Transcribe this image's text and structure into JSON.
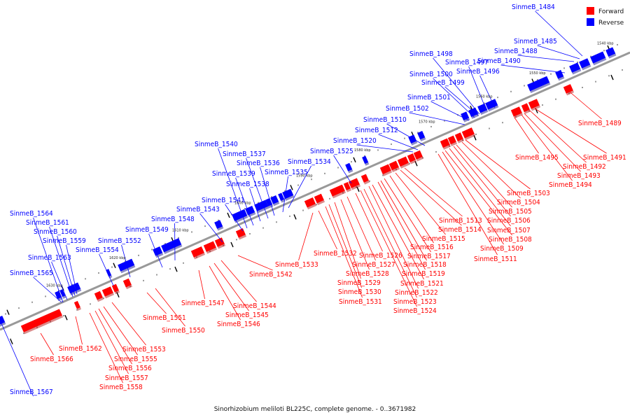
{
  "title": "Sinorhizobium meliloti BL225C, complete genome. - 0..3671982",
  "colors": {
    "forward": "#ff0000",
    "reverse": "#0000ff",
    "axis": "#999999"
  },
  "legend": {
    "forward": "Forward",
    "reverse": "Reverse"
  },
  "kbp_labels": [
    "1540 kbp",
    "1550 kbp",
    "1560 kbp",
    "1570 kbp",
    "1580 kbp",
    "1590 kbp",
    "1600 kbp",
    "1610 kbp",
    "1620 kbp",
    "1630 kbp"
  ],
  "forward_genes": [
    "SinmeB_1489",
    "SinmeB_1491",
    "SinmeB_1492",
    "SinmeB_1493",
    "SinmeB_1494",
    "SinmeB_1495",
    "SinmeB_1503",
    "SinmeB_1504",
    "SinmeB_1505",
    "SinmeB_1506",
    "SinmeB_1507",
    "SinmeB_1508",
    "SinmeB_1509",
    "SinmeB_1511",
    "SinmeB_1513",
    "SinmeB_1514",
    "SinmeB_1515",
    "SinmeB_1516",
    "SinmeB_1517",
    "SinmeB_1518",
    "SinmeB_1519",
    "SinmeB_1521",
    "SinmeB_1522",
    "SinmeB_1523",
    "SinmeB_1524",
    "SinmeB_1526",
    "SinmeB_1527",
    "SinmeB_1528",
    "SinmeB_1529",
    "SinmeB_1530",
    "SinmeB_1531",
    "SinmeB_1532",
    "SinmeB_1533",
    "SinmeB_1542",
    "SinmeB_1544",
    "SinmeB_1545",
    "SinmeB_1546",
    "SinmeB_1547",
    "SinmeB_1550",
    "SinmeB_1551",
    "SinmeB_1553",
    "SinmeB_1555",
    "SinmeB_1556",
    "SinmeB_1557",
    "SinmeB_1558",
    "SinmeB_1562",
    "SinmeB_1566"
  ],
  "reverse_genes": [
    "SinmeB_1484",
    "SinmeB_1485",
    "SinmeB_1488",
    "SinmeB_1490",
    "SinmeB_1496",
    "SinmeB_1497",
    "SinmeB_1498",
    "SinmeB_1499",
    "SinmeB_1500",
    "SinmeB_1501",
    "SinmeB_1502",
    "SinmeB_1510",
    "SinmeB_1512",
    "SinmeB_1520",
    "SinmeB_1525",
    "SinmeB_1534",
    "SinmeB_1535",
    "SinmeB_1536",
    "SinmeB_1537",
    "SinmeB_1538",
    "SinmeB_1539",
    "SinmeB_1540",
    "SinmeB_1541",
    "SinmeB_1543",
    "SinmeB_1548",
    "SinmeB_1549",
    "SinmeB_1552",
    "SinmeB_1554",
    "SinmeB_1559",
    "SinmeB_1560",
    "SinmeB_1561",
    "SinmeB_1563",
    "SinmeB_1564",
    "SinmeB_1565",
    "SinmeB_1567"
  ]
}
